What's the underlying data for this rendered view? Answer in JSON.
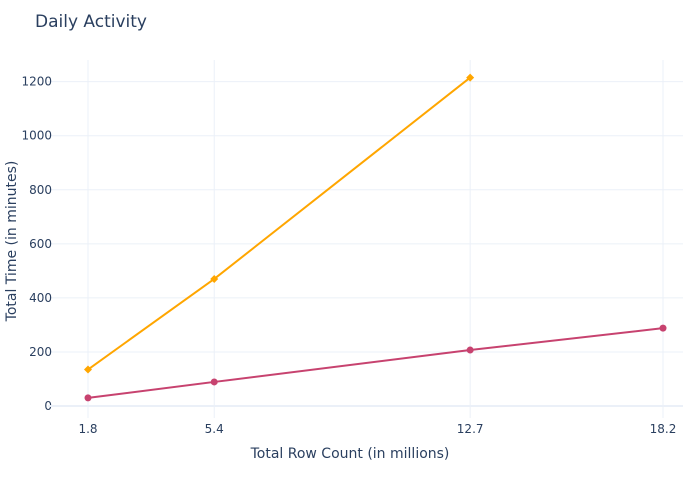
{
  "chart_data": {
    "type": "line",
    "title": "Daily Activity",
    "xlabel": "Total Row Count (in millions)",
    "ylabel": "Total Time (in minutes)",
    "xticks": [
      1.8,
      5.4,
      12.7,
      18.2
    ],
    "yticks": [
      0,
      200,
      400,
      600,
      800,
      1000,
      1200
    ],
    "xlim": [
      1.8,
      18.2
    ],
    "ylim": [
      0,
      1280
    ],
    "grid": true,
    "legend": "none",
    "series": [
      {
        "color": "#FFA600",
        "marker": "diamond",
        "x": [
          1.8,
          5.4,
          12.7
        ],
        "y": [
          135,
          470,
          1215
        ]
      },
      {
        "color": "#C7426F",
        "marker": "circle",
        "x": [
          1.8,
          5.4,
          12.7,
          18.2
        ],
        "y": [
          30,
          89,
          207,
          288
        ]
      }
    ]
  }
}
